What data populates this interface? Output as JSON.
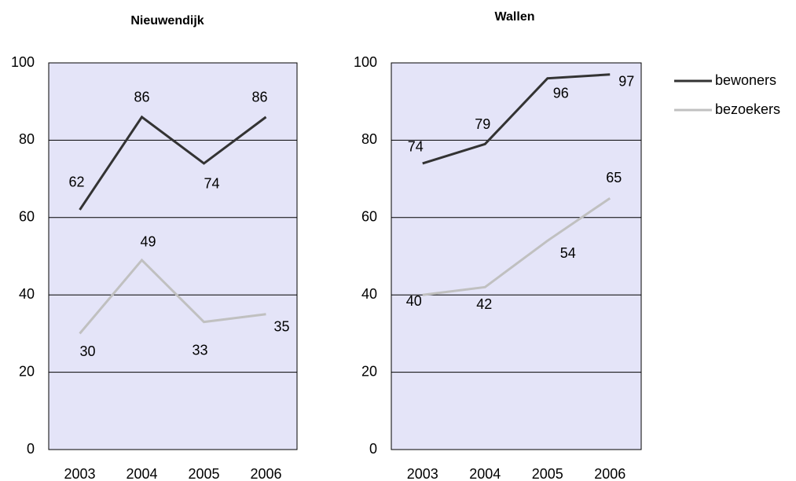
{
  "chart_data": [
    {
      "type": "line",
      "title": "Nieuwendijk",
      "categories": [
        "2003",
        "2004",
        "2005",
        "2006"
      ],
      "series": [
        {
          "name": "bewoners",
          "color": "#333333",
          "values": [
            62,
            86,
            74,
            86
          ]
        },
        {
          "name": "bezoekers",
          "color": "#c0c0c0",
          "values": [
            30,
            49,
            33,
            35
          ]
        }
      ],
      "ylim": [
        0,
        100
      ],
      "yticks": [
        0,
        20,
        40,
        60,
        80,
        100
      ],
      "grid": true
    },
    {
      "type": "line",
      "title": "Wallen",
      "categories": [
        "2003",
        "2004",
        "2005",
        "2006"
      ],
      "series": [
        {
          "name": "bewoners",
          "color": "#333333",
          "values": [
            74,
            79,
            96,
            97
          ]
        },
        {
          "name": "bezoekers",
          "color": "#c0c0c0",
          "values": [
            40,
            42,
            54,
            65
          ]
        }
      ],
      "ylim": [
        0,
        100
      ],
      "yticks": [
        0,
        20,
        40,
        60,
        80,
        100
      ],
      "grid": true,
      "legend": "right"
    }
  ]
}
